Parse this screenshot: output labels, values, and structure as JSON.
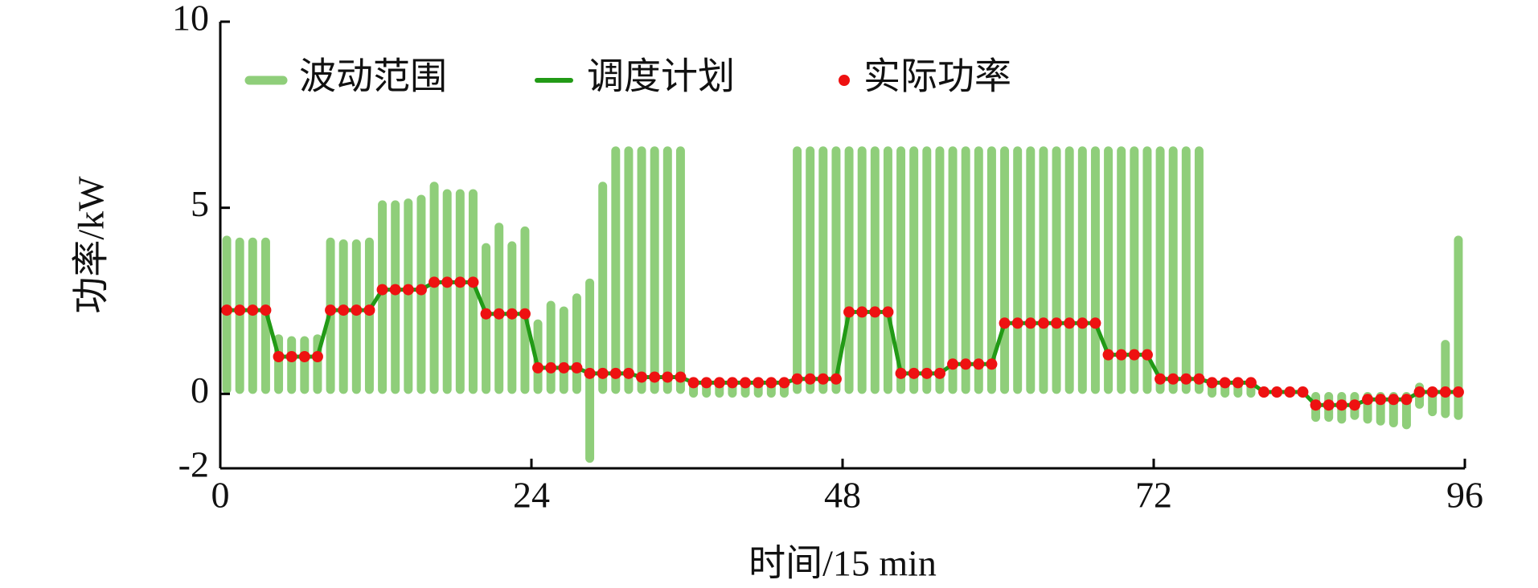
{
  "chart_data": {
    "type": "combo",
    "x_label": "时间/15 min",
    "y_label": "功率/kW",
    "xlim": [
      0,
      96
    ],
    "ylim": [
      -2,
      10
    ],
    "xticks": [
      0,
      24,
      48,
      72,
      96
    ],
    "yticks": [
      -2,
      0,
      5,
      10
    ],
    "x": [
      0.5,
      1.5,
      2.5,
      3.5,
      4.5,
      5.5,
      6.5,
      7.5,
      8.5,
      9.5,
      10.5,
      11.5,
      12.5,
      13.5,
      14.5,
      15.5,
      16.5,
      17.5,
      18.5,
      19.5,
      20.5,
      21.5,
      22.5,
      23.5,
      24.5,
      25.5,
      26.5,
      27.5,
      28.5,
      29.5,
      30.5,
      31.5,
      32.5,
      33.5,
      34.5,
      35.5,
      36.5,
      37.5,
      38.5,
      39.5,
      40.5,
      41.5,
      42.5,
      43.5,
      44.5,
      45.5,
      46.5,
      47.5,
      48.5,
      49.5,
      50.5,
      51.5,
      52.5,
      53.5,
      54.5,
      55.5,
      56.5,
      57.5,
      58.5,
      59.5,
      60.5,
      61.5,
      62.5,
      63.5,
      64.5,
      65.5,
      66.5,
      67.5,
      68.5,
      69.5,
      70.5,
      71.5,
      72.5,
      73.5,
      74.5,
      75.5,
      76.5,
      77.5,
      78.5,
      79.5,
      80.5,
      81.5,
      82.5,
      83.5,
      84.5,
      85.5,
      86.5,
      87.5,
      88.5,
      89.5,
      90.5,
      91.5,
      92.5,
      93.5,
      94.5,
      95.5
    ],
    "series": [
      {
        "name": "波动范围",
        "type": "range",
        "color": "#8fce7a",
        "low": [
          0,
          0,
          0,
          0,
          0,
          0,
          0,
          0,
          0,
          0,
          0,
          0,
          0,
          0,
          0,
          0,
          0,
          0,
          0,
          0,
          0,
          0,
          0,
          0,
          0,
          0,
          0,
          0,
          -1.85,
          0,
          0,
          0,
          0,
          0,
          0,
          0,
          -0.1,
          -0.1,
          -0.1,
          -0.1,
          -0.1,
          -0.1,
          -0.1,
          -0.1,
          0,
          0,
          0,
          0,
          0,
          0,
          0,
          0,
          0,
          0,
          0,
          0,
          0,
          0,
          0,
          0,
          0,
          0,
          0,
          0,
          0,
          0,
          0,
          0,
          0,
          0,
          0,
          0,
          0,
          0,
          0,
          0,
          -0.1,
          -0.1,
          -0.1,
          -0.1,
          -0.1,
          -0.1,
          -0.1,
          -0.1,
          -0.75,
          -0.75,
          -0.8,
          -0.7,
          -0.8,
          -0.85,
          -0.9,
          -0.95,
          -0.4,
          -0.6,
          -0.65,
          -0.7
        ],
        "high": [
          4.25,
          4.2,
          4.2,
          4.2,
          1.6,
          1.55,
          1.55,
          1.6,
          4.2,
          4.15,
          4.15,
          4.2,
          5.2,
          5.2,
          5.25,
          5.35,
          5.7,
          5.5,
          5.5,
          5.5,
          4.05,
          4.6,
          4.1,
          4.5,
          2.0,
          2.5,
          2.35,
          2.7,
          3.1,
          5.7,
          6.65,
          6.65,
          6.65,
          6.65,
          6.65,
          6.65,
          0.35,
          0.35,
          0.35,
          0.35,
          0.35,
          0.35,
          0.35,
          0.35,
          6.65,
          6.65,
          6.65,
          6.65,
          6.65,
          6.65,
          6.65,
          6.65,
          6.65,
          6.65,
          6.65,
          6.65,
          6.65,
          6.65,
          6.65,
          6.65,
          6.65,
          6.65,
          6.65,
          6.65,
          6.65,
          6.65,
          6.65,
          6.65,
          6.65,
          6.65,
          6.65,
          6.65,
          6.65,
          6.65,
          6.65,
          6.65,
          0.35,
          0.35,
          0.35,
          0.35,
          0.2,
          0.2,
          0.2,
          0.2,
          0.05,
          0.05,
          0.05,
          0.05,
          0.05,
          0.05,
          0.05,
          0.05,
          0.3,
          0.2,
          1.45,
          4.25
        ]
      },
      {
        "name": "调度计划",
        "type": "line",
        "color": "#229a16",
        "values": [
          2.25,
          2.25,
          2.25,
          2.25,
          1.0,
          1.0,
          1.0,
          1.0,
          2.25,
          2.25,
          2.25,
          2.25,
          2.8,
          2.8,
          2.8,
          2.8,
          3.0,
          3.0,
          3.0,
          3.0,
          2.15,
          2.15,
          2.15,
          2.15,
          0.7,
          0.7,
          0.7,
          0.7,
          0.55,
          0.55,
          0.55,
          0.55,
          0.45,
          0.45,
          0.45,
          0.45,
          0.3,
          0.3,
          0.3,
          0.3,
          0.3,
          0.3,
          0.3,
          0.3,
          0.4,
          0.4,
          0.4,
          0.4,
          2.2,
          2.2,
          2.2,
          2.2,
          0.55,
          0.55,
          0.55,
          0.55,
          0.8,
          0.8,
          0.8,
          0.8,
          1.9,
          1.9,
          1.9,
          1.9,
          1.9,
          1.9,
          1.9,
          1.9,
          1.05,
          1.05,
          1.05,
          1.05,
          0.4,
          0.4,
          0.4,
          0.4,
          0.3,
          0.3,
          0.3,
          0.3,
          0.05,
          0.05,
          0.05,
          0.05,
          -0.3,
          -0.3,
          -0.3,
          -0.3,
          -0.15,
          -0.15,
          -0.15,
          -0.15,
          0.05,
          0.05,
          0.05,
          0.05
        ]
      },
      {
        "name": "实际功率",
        "type": "scatter",
        "color": "#ee1111",
        "values": [
          2.25,
          2.25,
          2.25,
          2.25,
          1.0,
          1.0,
          1.0,
          1.0,
          2.25,
          2.25,
          2.25,
          2.25,
          2.8,
          2.8,
          2.8,
          2.8,
          3.0,
          3.0,
          3.0,
          3.0,
          2.15,
          2.15,
          2.15,
          2.15,
          0.7,
          0.7,
          0.7,
          0.7,
          0.55,
          0.55,
          0.55,
          0.55,
          0.45,
          0.45,
          0.45,
          0.45,
          0.3,
          0.3,
          0.3,
          0.3,
          0.3,
          0.3,
          0.3,
          0.3,
          0.4,
          0.4,
          0.4,
          0.4,
          2.2,
          2.2,
          2.2,
          2.2,
          0.55,
          0.55,
          0.55,
          0.55,
          0.8,
          0.8,
          0.8,
          0.8,
          1.9,
          1.9,
          1.9,
          1.9,
          1.9,
          1.9,
          1.9,
          1.9,
          1.05,
          1.05,
          1.05,
          1.05,
          0.4,
          0.4,
          0.4,
          0.4,
          0.3,
          0.3,
          0.3,
          0.3,
          0.05,
          0.05,
          0.05,
          0.05,
          -0.3,
          -0.3,
          -0.3,
          -0.3,
          -0.15,
          -0.15,
          -0.15,
          -0.15,
          0.05,
          0.05,
          0.05,
          0.05
        ]
      }
    ]
  }
}
